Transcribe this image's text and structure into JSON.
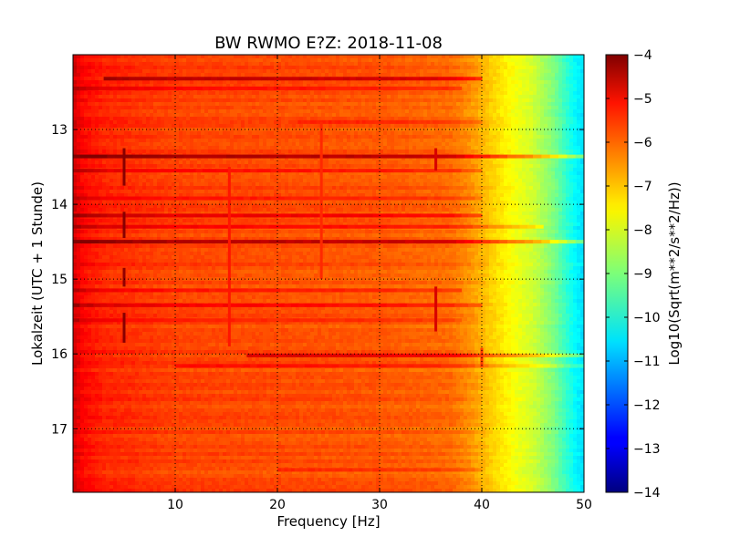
{
  "chart_data": {
    "type": "heatmap",
    "title": "BW RWMO E?Z: 2018-11-08",
    "xlabel": "Frequency [Hz]",
    "ylabel": "Lokalzeit (UTC + 1 Stunde)",
    "xlim": [
      0,
      50
    ],
    "ylim_time_hours": [
      12.0,
      17.85
    ],
    "y_inverted": true,
    "x_ticks": [
      10,
      20,
      30,
      40,
      50
    ],
    "x_tick_labels": [
      "10",
      "20",
      "30",
      "40",
      "50"
    ],
    "y_ticks": [
      13,
      14,
      15,
      16,
      17
    ],
    "y_tick_labels": [
      "13",
      "14",
      "15",
      "16",
      "17"
    ],
    "grid": true,
    "colormap": "jet",
    "colorbar": {
      "label": "Log10(Sqrt(m**2/s**2/Hz))",
      "range": [
        -14,
        -4
      ],
      "ticks": [
        -4,
        -5,
        -6,
        -7,
        -8,
        -9,
        -10,
        -11,
        -12,
        -13,
        -14
      ],
      "tick_labels": [
        "−4",
        "−5",
        "−6",
        "−7",
        "−8",
        "−9",
        "−10",
        "−11",
        "−12",
        "−13",
        "−14"
      ]
    },
    "spectral_profile": {
      "description_values_log10": [
        {
          "freq_hz": 0,
          "level": -4.8
        },
        {
          "freq_hz": 1,
          "level": -5.3
        },
        {
          "freq_hz": 3,
          "level": -5.6
        },
        {
          "freq_hz": 10,
          "level": -5.9
        },
        {
          "freq_hz": 20,
          "level": -6.0
        },
        {
          "freq_hz": 30,
          "level": -6.1
        },
        {
          "freq_hz": 37,
          "level": -6.3
        },
        {
          "freq_hz": 39,
          "level": -6.7
        },
        {
          "freq_hz": 41,
          "level": -7.3
        },
        {
          "freq_hz": 43,
          "level": -7.8
        },
        {
          "freq_hz": 45,
          "level": -8.2
        },
        {
          "freq_hz": 47,
          "level": -9.0
        },
        {
          "freq_hz": 49,
          "level": -10.2
        },
        {
          "freq_hz": 50,
          "level": -10.6
        }
      ]
    },
    "horizontal_bands": [
      {
        "time_h": 12.32,
        "f_from": 3,
        "f_to": 40,
        "delta": -1.3
      },
      {
        "time_h": 12.45,
        "f_from": 0,
        "f_to": 38,
        "delta": -0.6
      },
      {
        "time_h": 12.9,
        "f_from": 22,
        "f_to": 40,
        "delta": -0.5
      },
      {
        "time_h": 13.36,
        "f_from": 0,
        "f_to": 50,
        "delta": -1.5
      },
      {
        "time_h": 13.55,
        "f_from": 0,
        "f_to": 40,
        "delta": -0.6
      },
      {
        "time_h": 13.92,
        "f_from": 0,
        "f_to": 40,
        "delta": -0.5
      },
      {
        "time_h": 14.15,
        "f_from": 0,
        "f_to": 40,
        "delta": -0.9
      },
      {
        "time_h": 14.3,
        "f_from": 0,
        "f_to": 46,
        "delta": -0.7
      },
      {
        "time_h": 14.5,
        "f_from": 0,
        "f_to": 50,
        "delta": -1.4
      },
      {
        "time_h": 15.15,
        "f_from": 0,
        "f_to": 38,
        "delta": -0.5
      },
      {
        "time_h": 15.35,
        "f_from": 0,
        "f_to": 40,
        "delta": -0.7
      },
      {
        "time_h": 15.55,
        "f_from": 0,
        "f_to": 38,
        "delta": -0.4
      },
      {
        "time_h": 16.02,
        "f_from": 17,
        "f_to": 50,
        "delta": -1.1
      },
      {
        "time_h": 16.16,
        "f_from": 10,
        "f_to": 50,
        "delta": -0.6
      },
      {
        "time_h": 17.55,
        "f_from": 20,
        "f_to": 40,
        "delta": -0.4
      }
    ],
    "vertical_lines": [
      {
        "freq_hz": 5,
        "t_from": 13.25,
        "t_to": 13.75,
        "delta": -1.6
      },
      {
        "freq_hz": 5,
        "t_from": 14.1,
        "t_to": 14.45,
        "delta": -1.6
      },
      {
        "freq_hz": 5,
        "t_from": 14.85,
        "t_to": 15.1,
        "delta": -1.5
      },
      {
        "freq_hz": 5,
        "t_from": 15.45,
        "t_to": 15.85,
        "delta": -1.6
      },
      {
        "freq_hz": 15.3,
        "t_from": 13.5,
        "t_to": 15.9,
        "delta": -0.5
      },
      {
        "freq_hz": 24.3,
        "t_from": 12.9,
        "t_to": 15.0,
        "delta": -0.4
      },
      {
        "freq_hz": 35.5,
        "t_from": 13.25,
        "t_to": 13.55,
        "delta": -1.4
      },
      {
        "freq_hz": 35.5,
        "t_from": 15.1,
        "t_to": 15.7,
        "delta": -1.4
      },
      {
        "freq_hz": 40,
        "t_from": 15.92,
        "t_to": 16.18,
        "delta": -1.2
      }
    ]
  }
}
